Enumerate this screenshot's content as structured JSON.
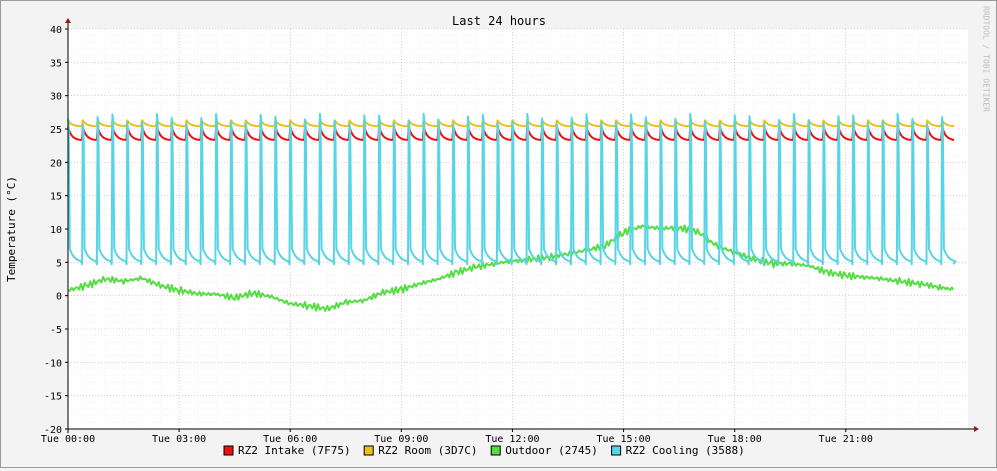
{
  "chart_data": {
    "type": "line",
    "title": "Last 24 hours",
    "ylabel": "Temperature (°C)",
    "watermark": "RRDTOOL / TOBI OETIKER",
    "ylim": [
      -20,
      40
    ],
    "yticks": [
      40,
      35,
      30,
      25,
      20,
      15,
      10,
      5,
      0,
      -5,
      -10,
      -15,
      -20
    ],
    "xlim_hours": [
      0,
      24.3
    ],
    "xticks": [
      {
        "label": "Tue 00:00",
        "hour": 0
      },
      {
        "label": "Tue 03:00",
        "hour": 3
      },
      {
        "label": "Tue 06:00",
        "hour": 6
      },
      {
        "label": "Tue 09:00",
        "hour": 9
      },
      {
        "label": "Tue 12:00",
        "hour": 12
      },
      {
        "label": "Tue 15:00",
        "hour": 15
      },
      {
        "label": "Tue 18:00",
        "hour": 18
      },
      {
        "label": "Tue 21:00",
        "hour": 21
      }
    ],
    "grid": true,
    "legend_position": "bottom",
    "series": [
      {
        "name": "RZ2 Intake (7F75)",
        "color": "#ee1111",
        "pattern": "sawtooth",
        "cycle_hours": 0.4,
        "high": 25.3,
        "low": 23.3,
        "start_hour": 0,
        "end_hour": 23.9
      },
      {
        "name": "RZ2 Room (3D7C)",
        "color": "#e8c020",
        "pattern": "sawtooth",
        "cycle_hours": 0.4,
        "high": 26.3,
        "low": 25.4,
        "start_hour": 0,
        "end_hour": 23.9
      },
      {
        "name": "Outdoor (2745)",
        "color": "#55dd44",
        "pattern": "curve",
        "hours": [
          0,
          0.5,
          1,
          1.5,
          2,
          2.5,
          3,
          3.5,
          4,
          4.5,
          5,
          5.5,
          6,
          6.5,
          7,
          7.5,
          8,
          8.5,
          9,
          9.5,
          10,
          10.5,
          11,
          11.5,
          12,
          12.5,
          13,
          13.5,
          14,
          14.5,
          15,
          15.5,
          16,
          16.5,
          17,
          17.5,
          18,
          18.5,
          19,
          19.5,
          20,
          20.5,
          21,
          21.5,
          22,
          22.5,
          23,
          23.5,
          23.9
        ],
        "values": [
          0.8,
          1.5,
          2.5,
          2.2,
          2.6,
          1.5,
          0.8,
          0.3,
          0.2,
          -0.3,
          0.4,
          -0.2,
          -1.2,
          -1.5,
          -2.0,
          -1.0,
          -0.7,
          0.5,
          0.9,
          1.8,
          2.5,
          3.5,
          4.3,
          4.8,
          5.2,
          5.4,
          5.8,
          6.3,
          6.8,
          7.5,
          9.5,
          10.4,
          10.1,
          10.2,
          9.6,
          7.5,
          6.5,
          5.5,
          4.8,
          4.8,
          4.5,
          3.5,
          3.0,
          2.8,
          2.5,
          2.1,
          1.8,
          1.3,
          0.9
        ]
      },
      {
        "name": "RZ2 Cooling (3588)",
        "color": "#55d5e5",
        "pattern": "pulse",
        "cycle_hours": 0.4,
        "peak": 26.5,
        "base": 5.0,
        "start_hour": 0,
        "end_hour": 23.9
      }
    ]
  }
}
